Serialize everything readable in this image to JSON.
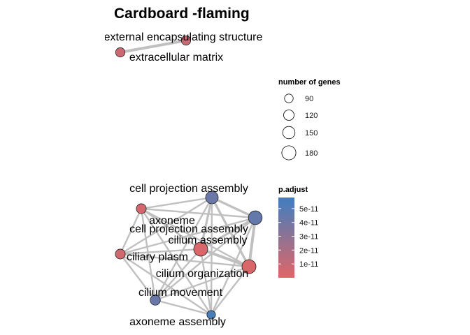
{
  "chart_data": {
    "type": "network",
    "title": "Cardboard -flaming",
    "nodes": [
      {
        "id": "external-encapsulating-structure",
        "label": "external encapsulating structure",
        "genes": 95,
        "p_adjust": 9e-12
      },
      {
        "id": "extracellular-matrix",
        "label": "extracellular matrix",
        "genes": 95,
        "p_adjust": 8e-12
      },
      {
        "id": "cell-projection-assembly-1",
        "label": "cell projection assembly",
        "genes": 155,
        "p_adjust": 4.2e-11
      },
      {
        "id": "axoneme",
        "label": "axoneme",
        "genes": 105,
        "p_adjust": 5e-12
      },
      {
        "id": "cell-projection-assembly-2",
        "label": "cell projection assembly",
        "genes": 175,
        "p_adjust": 4.5e-11
      },
      {
        "id": "cilium-assembly",
        "label": "cilium assembly",
        "genes": 180,
        "p_adjust": 2e-12
      },
      {
        "id": "ciliary-plasm",
        "label": "ciliary plasm",
        "genes": 105,
        "p_adjust": 6e-12
      },
      {
        "id": "cilium-organization",
        "label": "cilium organization",
        "genes": 180,
        "p_adjust": 2.5e-12
      },
      {
        "id": "cilium-movement",
        "label": "cilium movement",
        "genes": 110,
        "p_adjust": 4.3e-11
      },
      {
        "id": "axoneme-assembly",
        "label": "axoneme assembly",
        "genes": 80,
        "p_adjust": 5.5e-11
      }
    ],
    "edges": [
      {
        "source": "external-encapsulating-structure",
        "target": "extracellular-matrix",
        "weight": 5
      },
      {
        "source": "cell-projection-assembly-1",
        "target": "axoneme",
        "weight": 3
      },
      {
        "source": "cell-projection-assembly-1",
        "target": "cell-projection-assembly-2",
        "weight": 4
      },
      {
        "source": "cell-projection-assembly-1",
        "target": "cilium-assembly",
        "weight": 4
      },
      {
        "source": "cell-projection-assembly-1",
        "target": "ciliary-plasm",
        "weight": 3
      },
      {
        "source": "cell-projection-assembly-1",
        "target": "cilium-organization",
        "weight": 4
      },
      {
        "source": "cell-projection-assembly-1",
        "target": "cilium-movement",
        "weight": 3
      },
      {
        "source": "cell-projection-assembly-1",
        "target": "axoneme-assembly",
        "weight": 3
      },
      {
        "source": "axoneme",
        "target": "cell-projection-assembly-2",
        "weight": 3
      },
      {
        "source": "axoneme",
        "target": "cilium-assembly",
        "weight": 3
      },
      {
        "source": "axoneme",
        "target": "ciliary-plasm",
        "weight": 3
      },
      {
        "source": "axoneme",
        "target": "cilium-organization",
        "weight": 3
      },
      {
        "source": "axoneme",
        "target": "cilium-movement",
        "weight": 3
      },
      {
        "source": "axoneme",
        "target": "axoneme-assembly",
        "weight": 3
      },
      {
        "source": "cell-projection-assembly-2",
        "target": "cilium-assembly",
        "weight": 4
      },
      {
        "source": "cell-projection-assembly-2",
        "target": "ciliary-plasm",
        "weight": 3
      },
      {
        "source": "cell-projection-assembly-2",
        "target": "cilium-organization",
        "weight": 5
      },
      {
        "source": "cell-projection-assembly-2",
        "target": "cilium-movement",
        "weight": 3
      },
      {
        "source": "cell-projection-assembly-2",
        "target": "axoneme-assembly",
        "weight": 3
      },
      {
        "source": "cilium-assembly",
        "target": "ciliary-plasm",
        "weight": 3
      },
      {
        "source": "cilium-assembly",
        "target": "cilium-organization",
        "weight": 5
      },
      {
        "source": "cilium-assembly",
        "target": "cilium-movement",
        "weight": 3
      },
      {
        "source": "cilium-assembly",
        "target": "axoneme-assembly",
        "weight": 3
      },
      {
        "source": "ciliary-plasm",
        "target": "cilium-organization",
        "weight": 3
      },
      {
        "source": "ciliary-plasm",
        "target": "cilium-movement",
        "weight": 3
      },
      {
        "source": "ciliary-plasm",
        "target": "axoneme-assembly",
        "weight": 3
      },
      {
        "source": "cilium-organization",
        "target": "cilium-movement",
        "weight": 3
      },
      {
        "source": "cilium-organization",
        "target": "axoneme-assembly",
        "weight": 3
      },
      {
        "source": "cilium-movement",
        "target": "axoneme-assembly",
        "weight": 3
      }
    ],
    "size_legend": {
      "title": "number of genes",
      "values": [
        90,
        120,
        150,
        180
      ]
    },
    "color_legend": {
      "title": "p.adjust",
      "min": 0,
      "max": 5.8e-11,
      "ticks": [
        {
          "value": 5e-11,
          "label": "5e-11"
        },
        {
          "value": 4e-11,
          "label": "4e-11"
        },
        {
          "value": 3e-11,
          "label": "3e-11"
        },
        {
          "value": 2e-11,
          "label": "2e-11"
        },
        {
          "value": 1e-11,
          "label": "1e-11"
        }
      ],
      "low_color": "#e06666",
      "high_color": "#3f7ec0"
    },
    "edge_color": "#c0c0c0",
    "legend_placement": "right"
  }
}
